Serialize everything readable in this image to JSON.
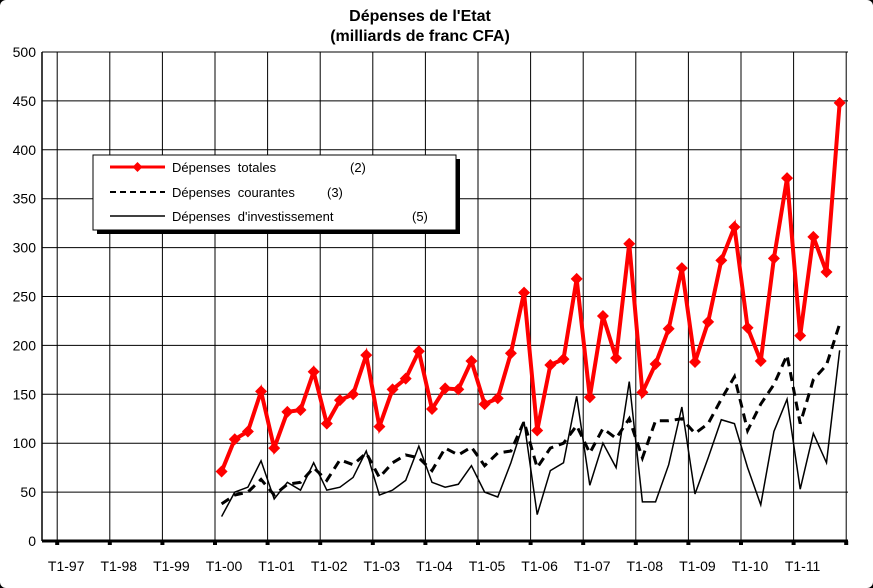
{
  "chart_data": {
    "type": "line",
    "title": "Dépenses de l'Etat",
    "subtitle": "(milliards de franc CFA)",
    "xlabel": "",
    "ylabel": "",
    "ylim": [
      0,
      500
    ],
    "yticks": [
      "0",
      "50",
      "100",
      "150",
      "200",
      "250",
      "300",
      "350",
      "400",
      "450",
      "500"
    ],
    "xtick_labels": [
      "T1-97",
      "T1-98",
      "T1-99",
      "T1-00",
      "T1-01",
      "T1-02",
      "T1-03",
      "T1-04",
      "T1-05",
      "T1-06",
      "T1-07",
      "T1-08",
      "T1-09",
      "T1-10",
      "T1-11"
    ],
    "grid": true,
    "legend_position": "upper-left",
    "x_note": "quarterly, T1-00 to T4-11",
    "series": [
      {
        "name": "Dépenses  totales",
        "note": "(2)",
        "color": "#ff0000",
        "style": "solid-markers",
        "values": [
          71,
          104,
          112,
          153,
          95,
          132,
          134,
          173,
          120,
          144,
          150,
          190,
          117,
          155,
          166,
          194,
          135,
          156,
          155,
          184,
          140,
          146,
          192,
          254,
          113,
          180,
          186,
          268,
          147,
          230,
          187,
          304,
          152,
          181,
          217,
          279,
          183,
          224,
          287,
          321,
          218,
          184,
          289,
          371,
          210,
          311,
          275,
          448
        ]
      },
      {
        "name": "Dépenses  courantes",
        "note": "(3)",
        "color": "#000000",
        "style": "dashed",
        "values": [
          38,
          47,
          50,
          63,
          47,
          58,
          60,
          75,
          62,
          83,
          78,
          90,
          65,
          80,
          88,
          85,
          72,
          95,
          88,
          96,
          77,
          90,
          92,
          122,
          75,
          95,
          100,
          118,
          90,
          115,
          105,
          125,
          85,
          123,
          123,
          125,
          110,
          120,
          145,
          168,
          113,
          140,
          160,
          190,
          120,
          165,
          180,
          222
        ]
      },
      {
        "name": "Dépenses  d'investissement",
        "note": "(5)",
        "color": "#000000",
        "style": "solid",
        "values": [
          25,
          50,
          55,
          82,
          43,
          60,
          52,
          80,
          52,
          55,
          65,
          92,
          47,
          52,
          62,
          97,
          60,
          55,
          58,
          77,
          50,
          45,
          80,
          122,
          27,
          72,
          80,
          148,
          57,
          100,
          75,
          163,
          40,
          40,
          78,
          137,
          48,
          85,
          124,
          120,
          75,
          37,
          112,
          145,
          53,
          110,
          80,
          195
        ]
      }
    ]
  }
}
